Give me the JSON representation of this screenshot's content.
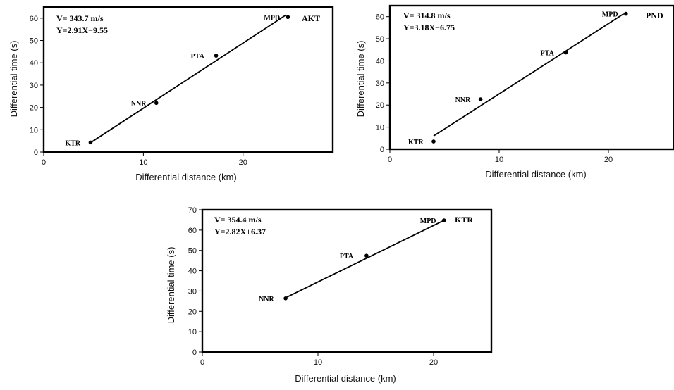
{
  "chart_data": [
    {
      "type": "scatter",
      "panel": "AKT",
      "station_label": "AKT",
      "velocity_text": "V= 343.7 m/s",
      "equation_text": "Y=2.91X−9.55",
      "xlabel": "Differential distance (km)",
      "ylabel": "Differential time (s)",
      "xlim": [
        0,
        29
      ],
      "ylim": [
        0,
        65
      ],
      "xticks": [
        0,
        10,
        20
      ],
      "yticks": [
        0,
        10,
        20,
        30,
        40,
        50,
        60
      ],
      "points": [
        {
          "name": "KTR",
          "x": 4.7,
          "y": 4.3
        },
        {
          "name": "NNR",
          "x": 11.3,
          "y": 22.0
        },
        {
          "name": "PTA",
          "x": 17.3,
          "y": 43.2
        },
        {
          "name": "MPD",
          "x": 24.5,
          "y": 60.5
        }
      ],
      "fit": {
        "x": [
          4.7,
          24.3
        ],
        "y": [
          4.2,
          61.4
        ]
      }
    },
    {
      "type": "scatter",
      "panel": "PND",
      "station_label": "PND",
      "velocity_text": "V= 314.8 m/s",
      "equation_text": "Y=3.18X−6.75",
      "xlabel": "Differential distance (km)",
      "ylabel": "Differential time (s)",
      "xlim": [
        0,
        26
      ],
      "ylim": [
        0,
        65
      ],
      "xticks": [
        0,
        10,
        20
      ],
      "yticks": [
        0,
        10,
        20,
        30,
        40,
        50,
        60
      ],
      "points": [
        {
          "name": "KTR",
          "x": 4.0,
          "y": 3.5
        },
        {
          "name": "NNR",
          "x": 8.3,
          "y": 22.6
        },
        {
          "name": "PTA",
          "x": 16.1,
          "y": 43.8
        },
        {
          "name": "MPD",
          "x": 21.6,
          "y": 61.3
        }
      ],
      "fit": {
        "x": [
          4.0,
          21.4
        ],
        "y": [
          6.0,
          61.3
        ]
      }
    },
    {
      "type": "scatter",
      "panel": "KTR",
      "station_label": "KTR",
      "velocity_text": "V= 354.4 m/s",
      "equation_text": "Y=2.82X+6.37",
      "xlabel": "Differential distance (km)",
      "ylabel": "Differential time (s)",
      "xlim": [
        0,
        25
      ],
      "ylim": [
        0,
        70
      ],
      "xticks": [
        0,
        10,
        20
      ],
      "yticks": [
        0,
        10,
        20,
        30,
        40,
        50,
        60,
        70
      ],
      "points": [
        {
          "name": "NNR",
          "x": 7.2,
          "y": 26.4
        },
        {
          "name": "PTA",
          "x": 14.2,
          "y": 47.4
        },
        {
          "name": "MPD",
          "x": 20.9,
          "y": 64.8
        }
      ],
      "fit": {
        "x": [
          7.2,
          20.9
        ],
        "y": [
          26.7,
          64.8
        ]
      }
    }
  ]
}
